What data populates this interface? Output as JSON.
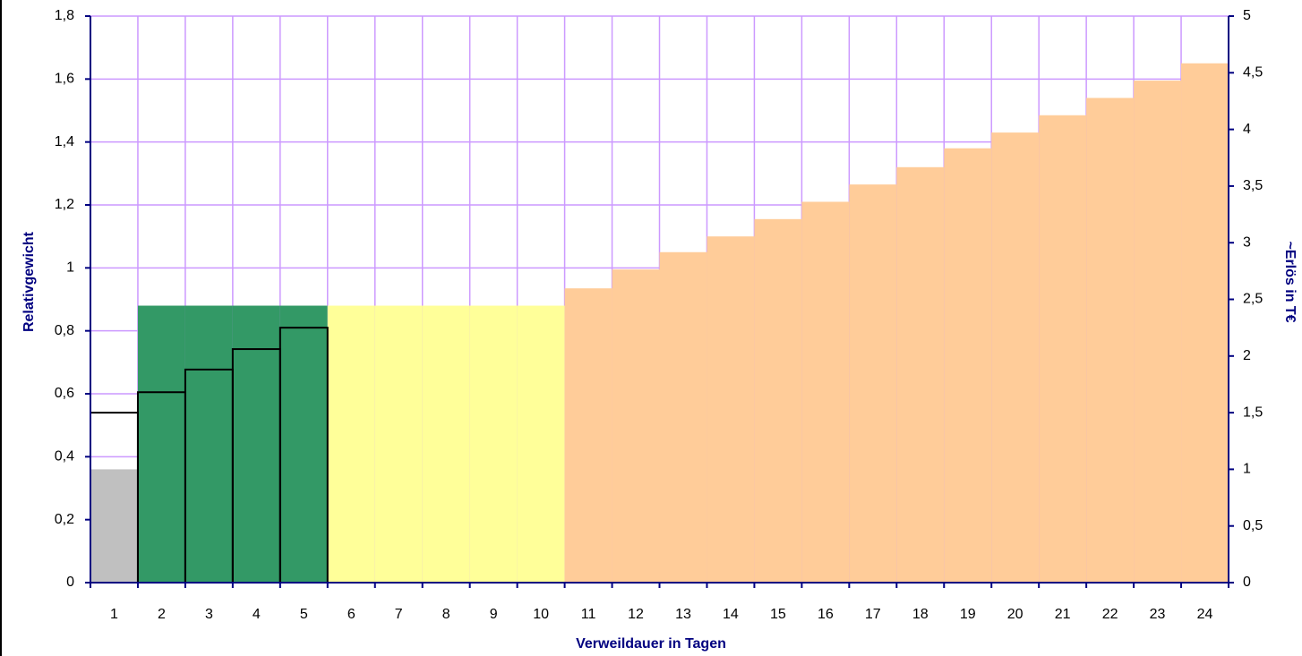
{
  "chart_data": {
    "type": "bar",
    "x_label": "Verweildauer in Tagen",
    "y_label": "Relativgewicht",
    "y2_label": "~Erlös in T€",
    "categories": [
      1,
      2,
      3,
      4,
      5,
      6,
      7,
      8,
      9,
      10,
      11,
      12,
      13,
      14,
      15,
      16,
      17,
      18,
      19,
      20,
      21,
      22,
      23,
      24
    ],
    "series": [
      {
        "color": "#c0c0c0",
        "values": [
          0.36,
          null,
          null,
          null,
          null,
          null,
          null,
          null,
          null,
          null,
          null,
          null,
          null,
          null,
          null,
          null,
          null,
          null,
          null,
          null,
          null,
          null,
          null,
          null
        ]
      },
      {
        "color": "#339966",
        "values": [
          null,
          0.88,
          0.88,
          0.88,
          0.88,
          null,
          null,
          null,
          null,
          null,
          null,
          null,
          null,
          null,
          null,
          null,
          null,
          null,
          null,
          null,
          null,
          null,
          null,
          null
        ]
      },
      {
        "color": "#ffff99",
        "values": [
          null,
          null,
          null,
          null,
          null,
          0.88,
          0.88,
          0.88,
          0.88,
          0.88,
          null,
          null,
          null,
          null,
          null,
          null,
          null,
          null,
          null,
          null,
          null,
          null,
          null,
          null
        ]
      },
      {
        "color": "#ffcc99",
        "values": [
          null,
          null,
          null,
          null,
          null,
          null,
          null,
          null,
          null,
          null,
          0.935,
          0.995,
          1.05,
          1.1,
          1.155,
          1.21,
          1.265,
          1.32,
          1.38,
          1.43,
          1.485,
          1.54,
          1.595,
          1.65
        ]
      },
      {
        "color": "#000000",
        "style": "outline",
        "values": [
          0.54,
          0.605,
          0.677,
          0.742,
          0.81,
          null,
          null,
          null,
          null,
          null,
          null,
          null,
          null,
          null,
          null,
          null,
          null,
          null,
          null,
          null,
          null,
          null,
          null,
          null
        ]
      }
    ],
    "ylim": [
      0,
      1.8
    ],
    "yticks": [
      0,
      {
        "value": 0.2,
        "label": "0,2"
      },
      {
        "value": 0.4,
        "label": "0,4"
      },
      {
        "value": 0.6,
        "label": "0,6"
      },
      {
        "value": 0.8,
        "label": "0,8"
      },
      1,
      {
        "value": 1.2,
        "label": "1,2"
      },
      {
        "value": 1.4,
        "label": "1,4"
      },
      {
        "value": 1.6,
        "label": "1,6"
      },
      {
        "value": 1.8,
        "label": "1,8"
      }
    ],
    "y2lim": [
      0,
      5
    ],
    "y2ticks": [
      0,
      {
        "value": 0.5,
        "label": "0,5"
      },
      1,
      {
        "value": 1.5,
        "label": "1,5"
      },
      2,
      {
        "value": 2.5,
        "label": "2,5"
      },
      3,
      {
        "value": 3.5,
        "label": "3,5"
      },
      4,
      {
        "value": 4.5,
        "label": "4,5"
      },
      5
    ],
    "grid": true
  }
}
